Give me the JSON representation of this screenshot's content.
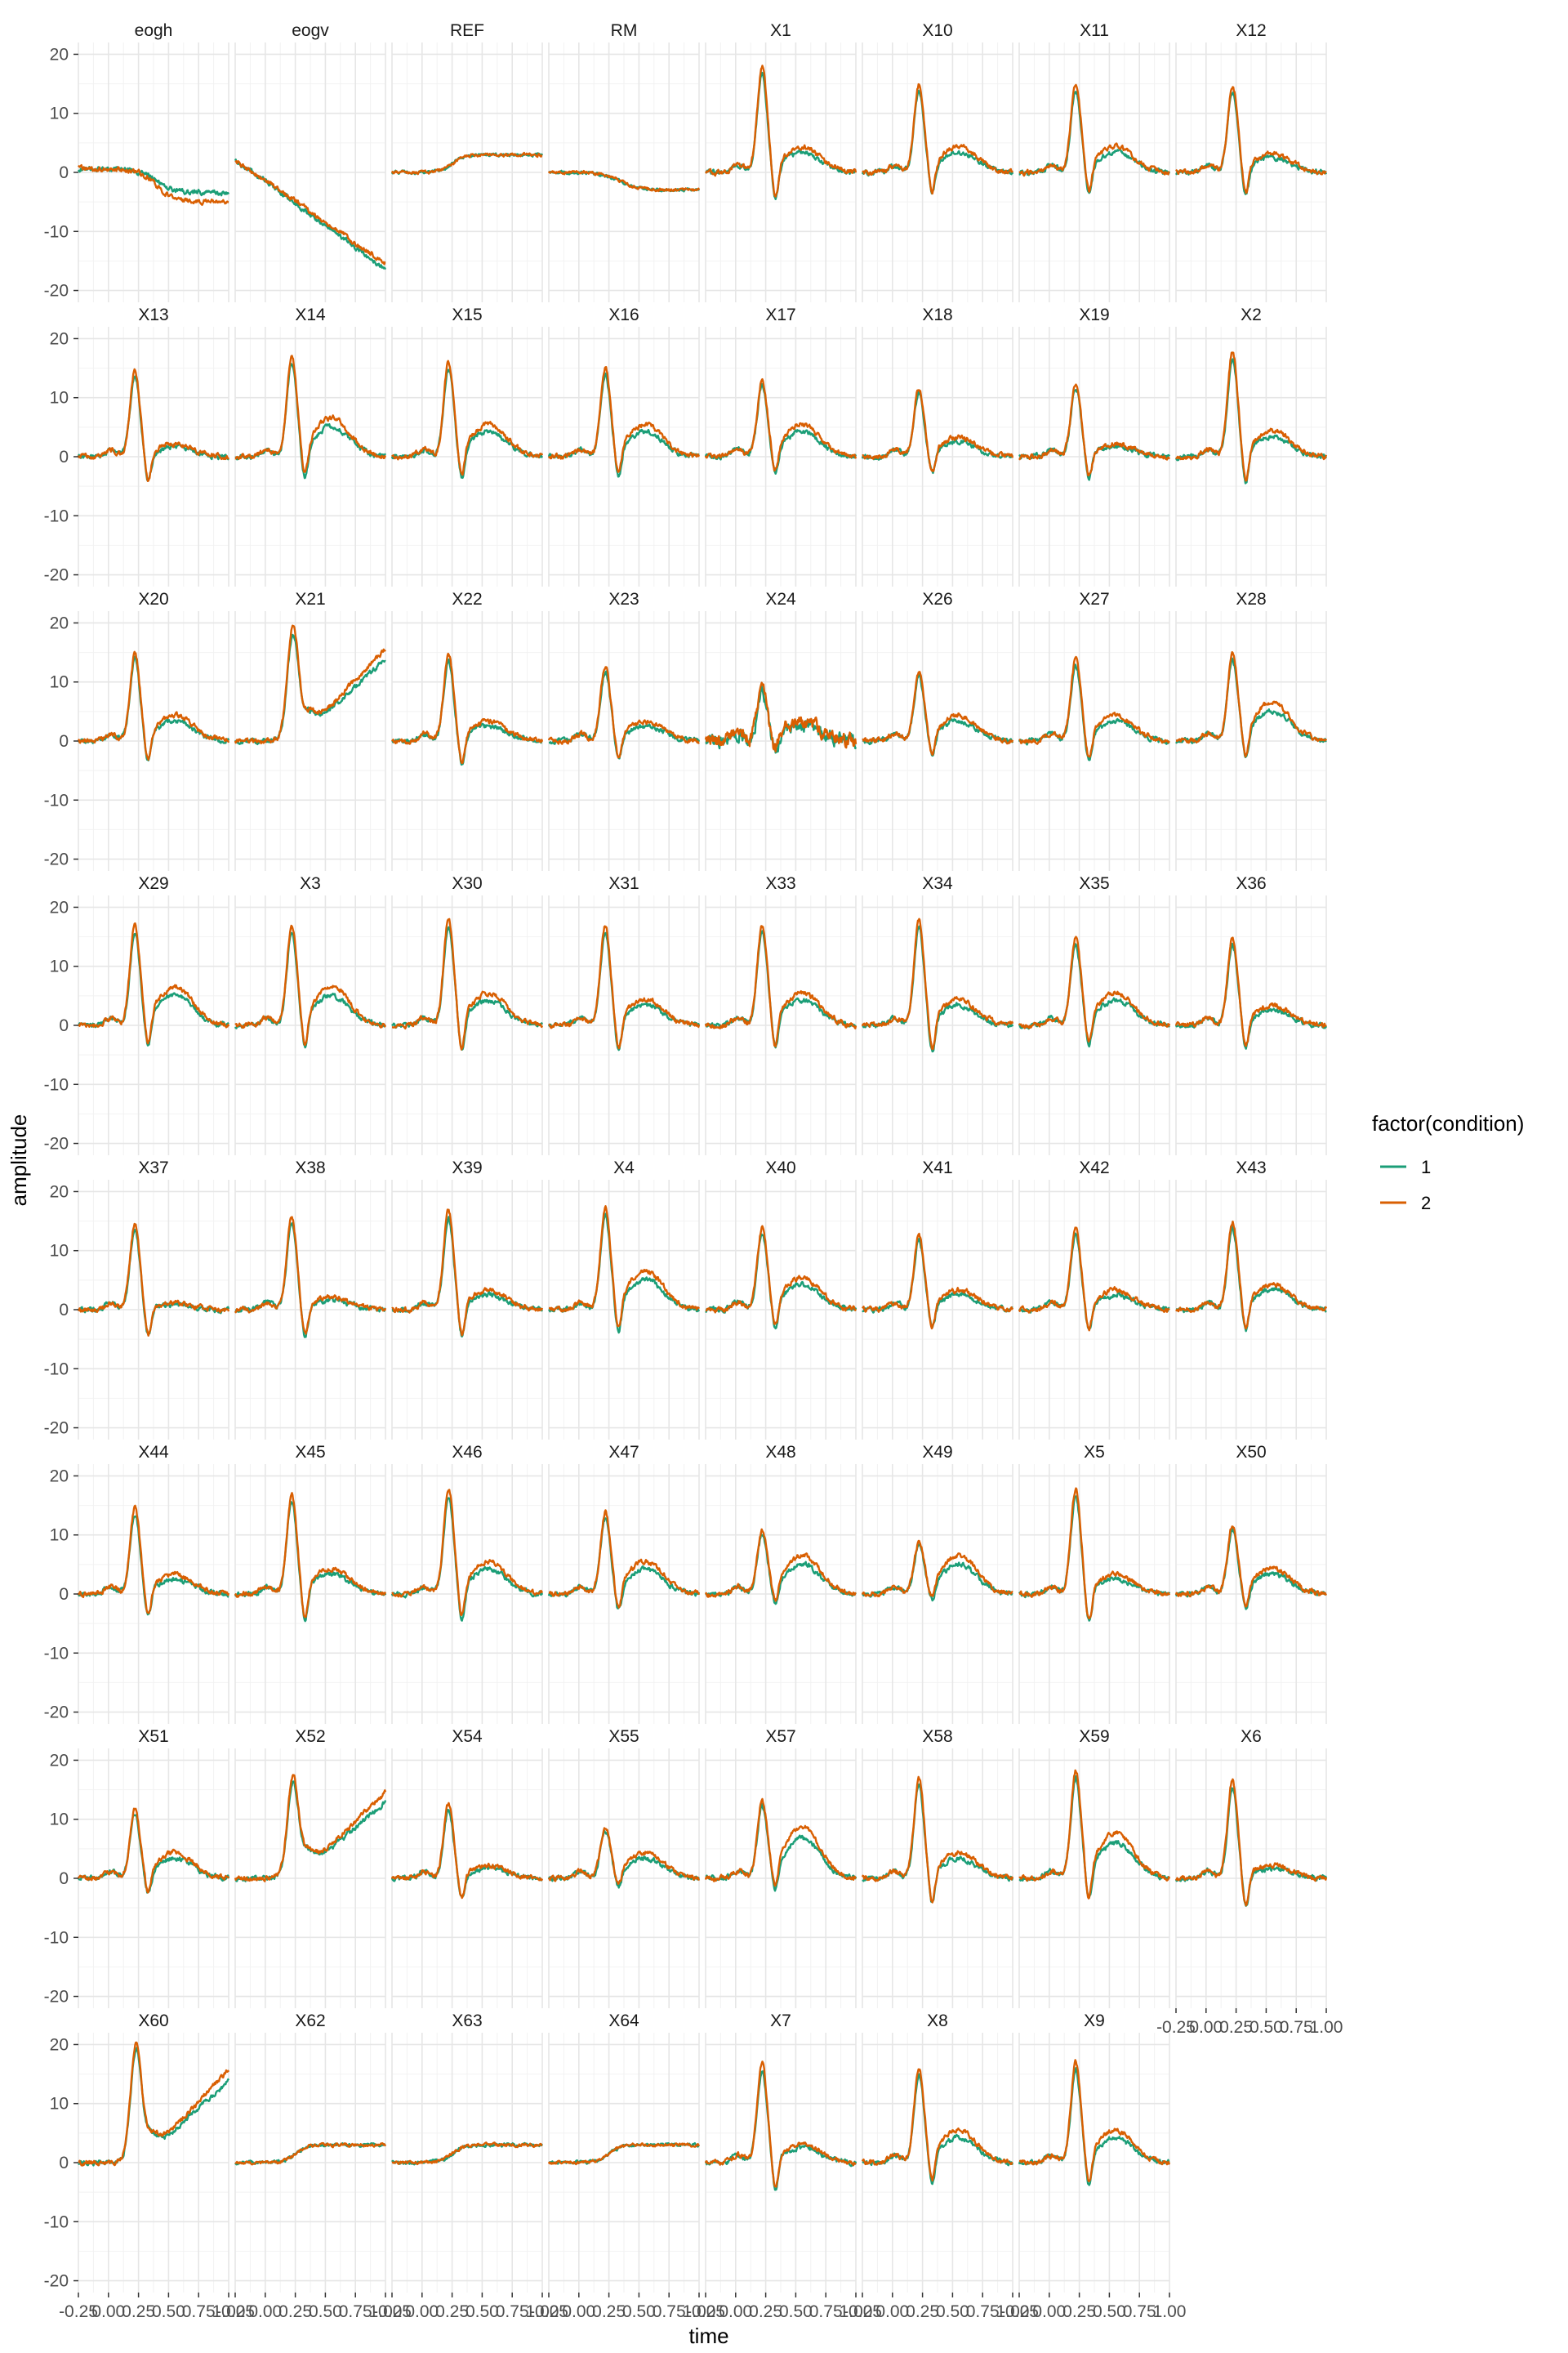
{
  "chart_data": {
    "type": "line",
    "title": "",
    "xlabel": "time",
    "ylabel": "amplitude",
    "xlim": [
      -0.25,
      1.0
    ],
    "ylim": [
      -22,
      22
    ],
    "x_ticks": [
      -0.25,
      0.0,
      0.25,
      0.5,
      0.75,
      1.0
    ],
    "x_tick_labels": [
      "-0.25",
      "0.00",
      "0.25",
      "0.50",
      "0.75",
      "1.00"
    ],
    "y_ticks": [
      -20,
      -10,
      0,
      10,
      20
    ],
    "y_tick_labels": [
      "-20",
      "-10",
      "0",
      "10",
      "20"
    ],
    "grid": true,
    "legend": {
      "title": "factor(condition)",
      "position": "right",
      "entries": [
        {
          "label": "1",
          "color": "#1B9E77"
        },
        {
          "label": "2",
          "color": "#D95F02"
        }
      ]
    },
    "series_names": [
      "1",
      "2"
    ],
    "colors": {
      "1": "#1B9E77",
      "2": "#D95F02"
    },
    "ncol": 8,
    "panels": [
      {
        "name": "eogh",
        "pattern": "eogh"
      },
      {
        "name": "eogv",
        "pattern": "eogv"
      },
      {
        "name": "REF",
        "pattern": "flat_up",
        "peak": 3
      },
      {
        "name": "RM",
        "pattern": "flat_down",
        "peak": -3
      },
      {
        "name": "X1",
        "pattern": "erp",
        "peak": 17,
        "late": 4
      },
      {
        "name": "X10",
        "pattern": "erp",
        "peak": 14,
        "late": 4
      },
      {
        "name": "X11",
        "pattern": "erp",
        "peak": 14,
        "late": 4
      },
      {
        "name": "X12",
        "pattern": "erp",
        "peak": 14,
        "late": 3
      },
      {
        "name": "X13",
        "pattern": "erp",
        "peak": 14,
        "late": 2
      },
      {
        "name": "X14",
        "pattern": "erp",
        "peak": 16,
        "late": 6
      },
      {
        "name": "X15",
        "pattern": "erp",
        "peak": 15,
        "late": 5
      },
      {
        "name": "X16",
        "pattern": "erp",
        "peak": 14,
        "late": 5
      },
      {
        "name": "X17",
        "pattern": "erp",
        "peak": 12,
        "late": 5
      },
      {
        "name": "X18",
        "pattern": "erp",
        "peak": 11,
        "late": 3
      },
      {
        "name": "X19",
        "pattern": "erp",
        "peak": 12,
        "late": 2
      },
      {
        "name": "X2",
        "pattern": "erp",
        "peak": 17,
        "late": 4
      },
      {
        "name": "X20",
        "pattern": "erp",
        "peak": 14,
        "late": 4
      },
      {
        "name": "X21",
        "pattern": "rising",
        "peak": 18,
        "late": 12
      },
      {
        "name": "X22",
        "pattern": "erp",
        "peak": 14,
        "late": 3
      },
      {
        "name": "X23",
        "pattern": "erp",
        "peak": 12,
        "late": 3
      },
      {
        "name": "X24",
        "pattern": "noisy",
        "peak": 8,
        "late": 3
      },
      {
        "name": "X26",
        "pattern": "erp",
        "peak": 11,
        "late": 4
      },
      {
        "name": "X27",
        "pattern": "erp",
        "peak": 13,
        "late": 4
      },
      {
        "name": "X28",
        "pattern": "erp",
        "peak": 14,
        "late": 6
      },
      {
        "name": "X29",
        "pattern": "erp",
        "peak": 16,
        "late": 6
      },
      {
        "name": "X3",
        "pattern": "erp",
        "peak": 16,
        "late": 6
      },
      {
        "name": "X30",
        "pattern": "erp",
        "peak": 17,
        "late": 5
      },
      {
        "name": "X31",
        "pattern": "erp",
        "peak": 16,
        "late": 4
      },
      {
        "name": "X33",
        "pattern": "erp",
        "peak": 16,
        "late": 5
      },
      {
        "name": "X34",
        "pattern": "erp",
        "peak": 17,
        "late": 4
      },
      {
        "name": "X35",
        "pattern": "erp",
        "peak": 14,
        "late": 5
      },
      {
        "name": "X36",
        "pattern": "erp",
        "peak": 14,
        "late": 3
      },
      {
        "name": "X37",
        "pattern": "erp",
        "peak": 14,
        "late": 1
      },
      {
        "name": "X38",
        "pattern": "erp",
        "peak": 15,
        "late": 2
      },
      {
        "name": "X39",
        "pattern": "erp",
        "peak": 16,
        "late": 3
      },
      {
        "name": "X4",
        "pattern": "erp",
        "peak": 16,
        "late": 6
      },
      {
        "name": "X40",
        "pattern": "erp",
        "peak": 13,
        "late": 5
      },
      {
        "name": "X41",
        "pattern": "erp",
        "peak": 12,
        "late": 3
      },
      {
        "name": "X42",
        "pattern": "erp",
        "peak": 13,
        "late": 3
      },
      {
        "name": "X43",
        "pattern": "erp",
        "peak": 14,
        "late": 4
      },
      {
        "name": "X44",
        "pattern": "erp",
        "peak": 14,
        "late": 3
      },
      {
        "name": "X45",
        "pattern": "erp",
        "peak": 16,
        "late": 4
      },
      {
        "name": "X46",
        "pattern": "erp",
        "peak": 17,
        "late": 5
      },
      {
        "name": "X47",
        "pattern": "erp",
        "peak": 13,
        "late": 5
      },
      {
        "name": "X48",
        "pattern": "erp",
        "peak": 10,
        "late": 6
      },
      {
        "name": "X49",
        "pattern": "erp",
        "peak": 8,
        "late": 6
      },
      {
        "name": "X5",
        "pattern": "erp",
        "peak": 17,
        "late": 3
      },
      {
        "name": "X50",
        "pattern": "erp",
        "peak": 11,
        "late": 4
      },
      {
        "name": "X51",
        "pattern": "erp",
        "peak": 11,
        "late": 4
      },
      {
        "name": "X52",
        "pattern": "rising",
        "peak": 16,
        "late": 11
      },
      {
        "name": "X54",
        "pattern": "erp",
        "peak": 12,
        "late": 2
      },
      {
        "name": "X55",
        "pattern": "erp",
        "peak": 8,
        "late": 4
      },
      {
        "name": "X57",
        "pattern": "erp",
        "peak": 12,
        "late": 8
      },
      {
        "name": "X58",
        "pattern": "erp",
        "peak": 16,
        "late": 4
      },
      {
        "name": "X59",
        "pattern": "erp",
        "peak": 17,
        "late": 7
      },
      {
        "name": "X6",
        "pattern": "erp",
        "peak": 16,
        "late": 2
      },
      {
        "name": "X60",
        "pattern": "rising",
        "peak": 19,
        "late": 12
      },
      {
        "name": "X62",
        "pattern": "flat_up",
        "peak": 3
      },
      {
        "name": "X63",
        "pattern": "flat_up",
        "peak": 3
      },
      {
        "name": "X64",
        "pattern": "flat_up",
        "peak": 3
      },
      {
        "name": "X7",
        "pattern": "erp",
        "peak": 16,
        "late": 3
      },
      {
        "name": "X8",
        "pattern": "erp",
        "peak": 15,
        "late": 5
      },
      {
        "name": "X9",
        "pattern": "erp",
        "peak": 16,
        "late": 5
      }
    ]
  }
}
